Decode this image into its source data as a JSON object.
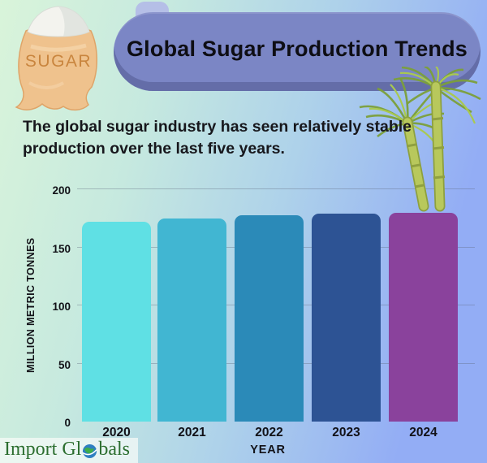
{
  "header": {
    "title": "Global Sugar Production Trends",
    "subtitle_line1": "The global sugar industry has seen relatively stable",
    "subtitle_line2": "production over the last five years.",
    "sugar_bag_label": "SUGAR"
  },
  "chart_data": {
    "type": "bar",
    "title": "Global Sugar Production Trends",
    "categories": [
      "2020",
      "2021",
      "2022",
      "2023",
      "2024"
    ],
    "values": [
      172,
      175,
      178,
      179,
      180
    ],
    "xlabel": "YEAR",
    "ylabel": "MILLION METRIC TONNES",
    "ylim": [
      0,
      200
    ],
    "yticks": [
      0,
      50,
      100,
      150,
      200
    ],
    "grid": true,
    "legend": "none",
    "bar_colors": [
      "#5fe0e4",
      "#41b6d2",
      "#2b8ab8",
      "#2d5394",
      "#8a429c"
    ]
  },
  "footer": {
    "logo_prefix": "Import Gl",
    "logo_suffix": "bals",
    "logo_full": "Import Globals"
  },
  "colors": {
    "banner": "#7b86c5",
    "banner_tab": "#b5bfe7",
    "bg_left": "#d9f4da",
    "bg_right": "#93adf5",
    "logo_green": "#2c6e2f",
    "bag_tan": "#efc28d",
    "cane_green": "#b8c85c"
  }
}
